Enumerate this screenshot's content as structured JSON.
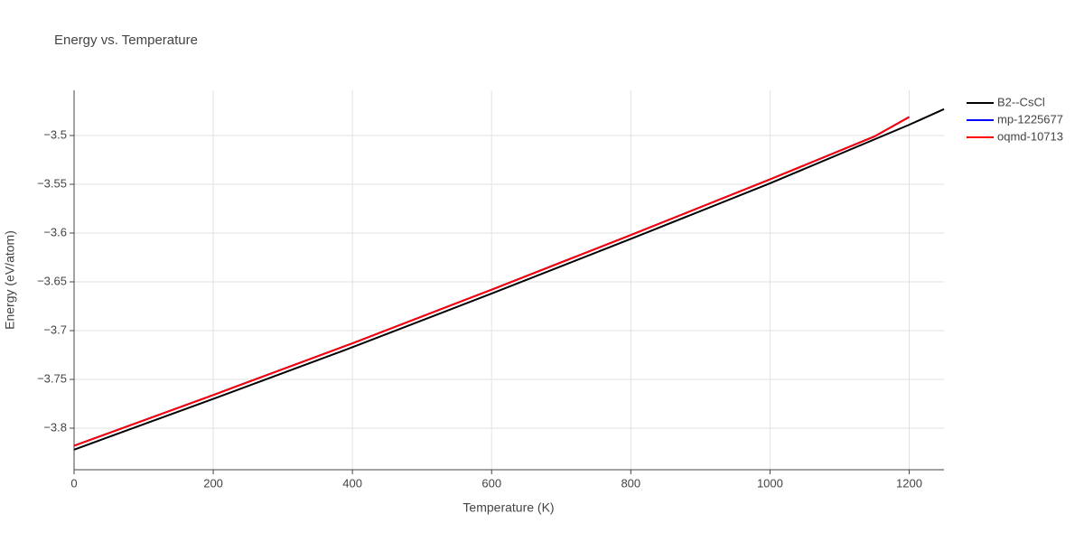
{
  "chart_data": {
    "type": "line",
    "title": "Energy vs. Temperature",
    "x_label": "Temperature (K)",
    "y_label": "Energy (eV/atom)",
    "xlim": [
      0,
      1250
    ],
    "xticks": [
      0,
      200,
      400,
      600,
      800,
      1000,
      1200
    ],
    "ylim": [
      -3.8426,
      -3.4537
    ],
    "yticks": [
      {
        "value": -3.8,
        "label": "−3.8"
      },
      {
        "value": -3.75,
        "label": "−3.75"
      },
      {
        "value": -3.7,
        "label": "−3.7"
      },
      {
        "value": -3.65,
        "label": "−3.65"
      },
      {
        "value": -3.6,
        "label": "−3.6"
      },
      {
        "value": -3.55,
        "label": "−3.55"
      },
      {
        "value": -3.5,
        "label": "−3.5"
      }
    ],
    "grid": true,
    "legend": "right",
    "series": [
      {
        "name": "B2--CsCl",
        "color": "#000000",
        "x": [
          0,
          200,
          400,
          600,
          800,
          1000,
          1200,
          1250
        ],
        "values": [
          -3.822,
          -3.77,
          -3.717,
          -3.662,
          -3.606,
          -3.549,
          -3.489,
          -3.473
        ]
      },
      {
        "name": "mp-1225677",
        "color": "#0000ff",
        "x": [
          0,
          200,
          400,
          600,
          800,
          1000,
          1150,
          1200
        ],
        "values": [
          -3.818,
          -3.766,
          -3.713,
          -3.658,
          -3.602,
          -3.545,
          -3.501,
          -3.481
        ]
      },
      {
        "name": "oqmd-10713",
        "color": "#ff0000",
        "x": [
          0,
          200,
          400,
          600,
          800,
          1000,
          1150,
          1200
        ],
        "values": [
          -3.818,
          -3.766,
          -3.713,
          -3.658,
          -3.602,
          -3.545,
          -3.501,
          -3.481
        ]
      }
    ]
  }
}
